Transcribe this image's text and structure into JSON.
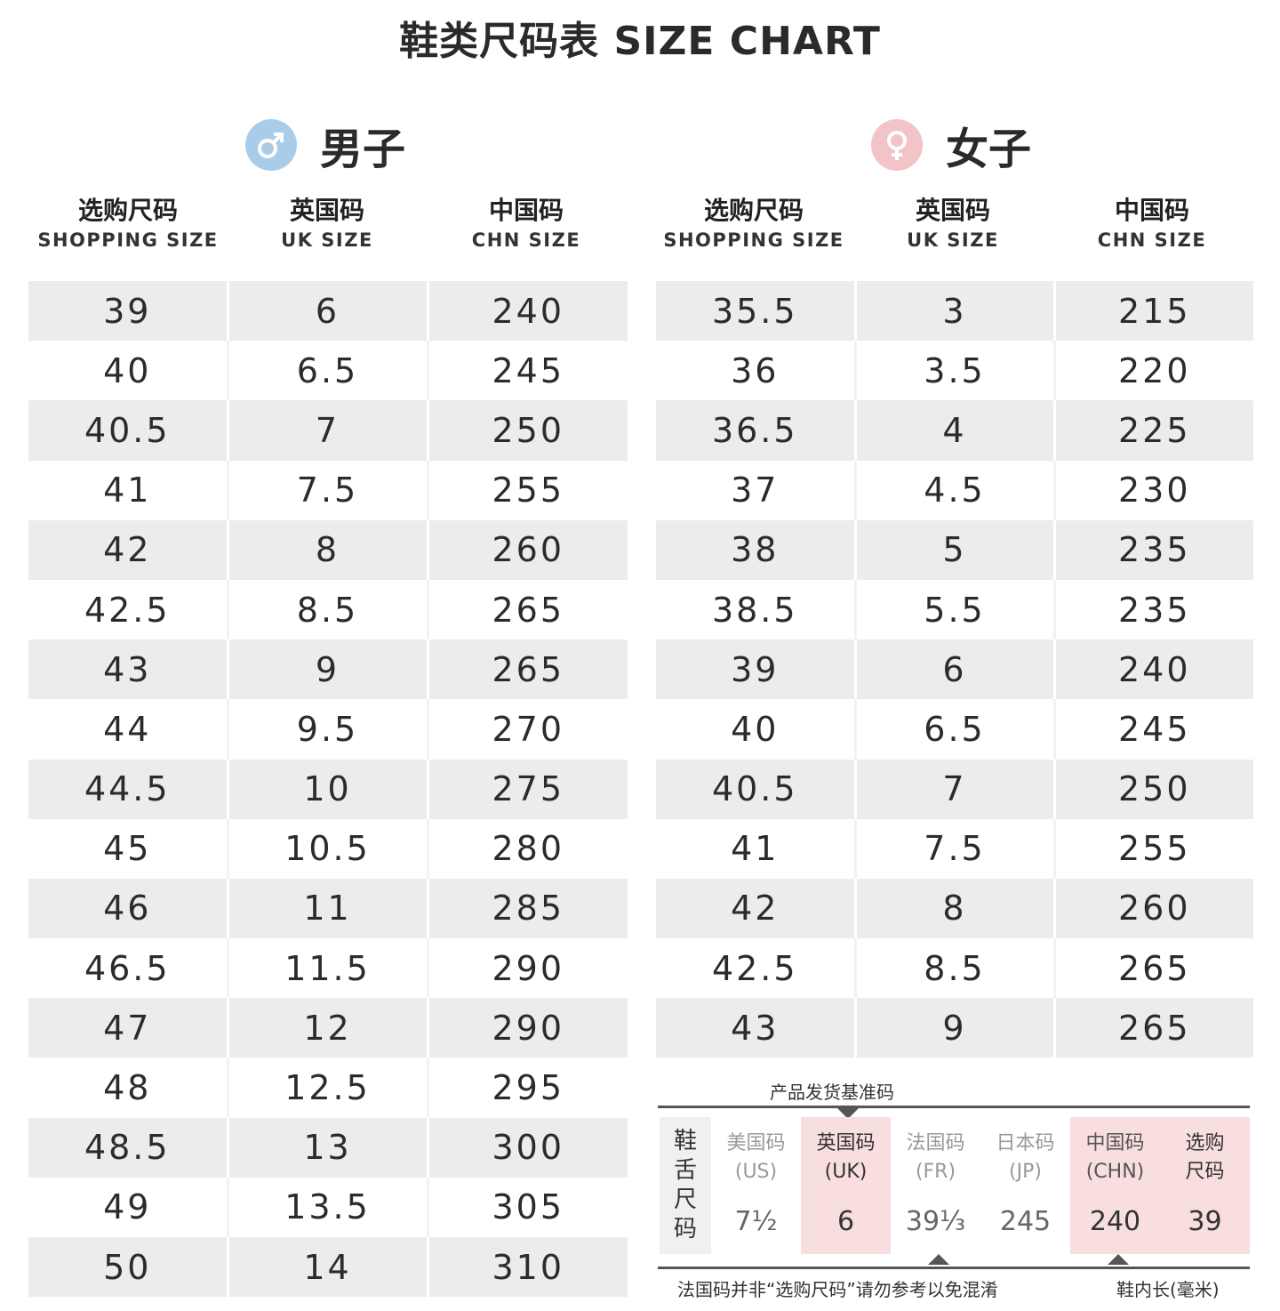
{
  "title": "鞋类尺码表 SIZE CHART",
  "men": {
    "label": "男子",
    "icon": "male-symbol-icon",
    "icon_color": "#a9cde8",
    "headers": [
      {
        "zh": "选购尺码",
        "en": "SHOPPING SIZE"
      },
      {
        "zh": "英国码",
        "en": "UK SIZE"
      },
      {
        "zh": "中国码",
        "en": "CHN SIZE"
      }
    ],
    "rows": [
      [
        "39",
        "6",
        "240"
      ],
      [
        "40",
        "6.5",
        "245"
      ],
      [
        "40.5",
        "7",
        "250"
      ],
      [
        "41",
        "7.5",
        "255"
      ],
      [
        "42",
        "8",
        "260"
      ],
      [
        "42.5",
        "8.5",
        "265"
      ],
      [
        "43",
        "9",
        "265"
      ],
      [
        "44",
        "9.5",
        "270"
      ],
      [
        "44.5",
        "10",
        "275"
      ],
      [
        "45",
        "10.5",
        "280"
      ],
      [
        "46",
        "11",
        "285"
      ],
      [
        "46.5",
        "11.5",
        "290"
      ],
      [
        "47",
        "12",
        "290"
      ],
      [
        "48",
        "12.5",
        "295"
      ],
      [
        "48.5",
        "13",
        "300"
      ],
      [
        "49",
        "13.5",
        "305"
      ],
      [
        "50",
        "14",
        "310"
      ]
    ]
  },
  "women": {
    "label": "女子",
    "icon": "female-symbol-icon",
    "icon_color": "#f2c4c8",
    "headers": [
      {
        "zh": "选购尺码",
        "en": "SHOPPING SIZE"
      },
      {
        "zh": "英国码",
        "en": "UK SIZE"
      },
      {
        "zh": "中国码",
        "en": "CHN SIZE"
      }
    ],
    "rows": [
      [
        "35.5",
        "3",
        "215"
      ],
      [
        "36",
        "3.5",
        "220"
      ],
      [
        "36.5",
        "4",
        "225"
      ],
      [
        "37",
        "4.5",
        "230"
      ],
      [
        "38",
        "5",
        "235"
      ],
      [
        "38.5",
        "5.5",
        "235"
      ],
      [
        "39",
        "6",
        "240"
      ],
      [
        "40",
        "6.5",
        "245"
      ],
      [
        "40.5",
        "7",
        "250"
      ],
      [
        "41",
        "7.5",
        "255"
      ],
      [
        "42",
        "8",
        "260"
      ],
      [
        "42.5",
        "8.5",
        "265"
      ],
      [
        "43",
        "9",
        "265"
      ]
    ]
  },
  "reference": {
    "caption": "产品发货基准码",
    "label_chars": [
      "鞋",
      "舌",
      "尺",
      "码"
    ],
    "columns": [
      {
        "h1": "美国码",
        "h2": "(US)",
        "value": "7½"
      },
      {
        "h1": "英国码",
        "h2": "(UK)",
        "value": "6"
      },
      {
        "h1": "法国码",
        "h2": "(FR)",
        "value": "39⅓"
      },
      {
        "h1": "日本码",
        "h2": "(JP)",
        "value": "245"
      },
      {
        "h1": "中国码",
        "h2": "(CHN)",
        "value": "240"
      },
      {
        "h1": "选购",
        "h2": "尺码",
        "value": "39"
      }
    ],
    "note_left": "法国码并非“选购尺码”请勿参考以免混淆",
    "note_right": "鞋内长(毫米)"
  }
}
